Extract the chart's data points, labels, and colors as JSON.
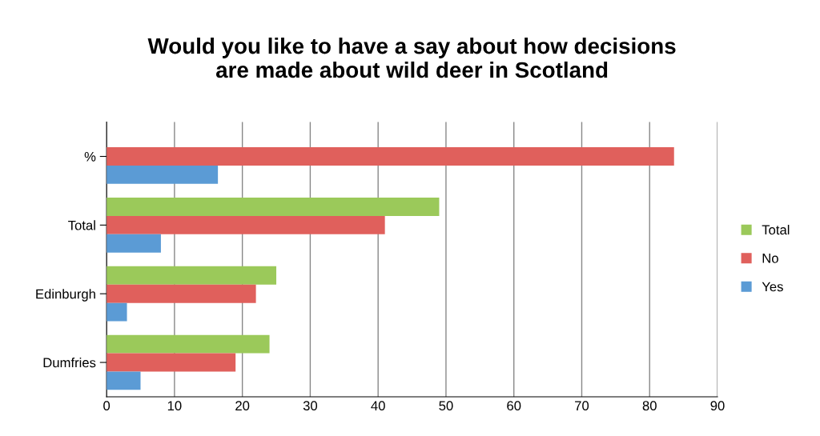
{
  "chart_data": {
    "type": "bar",
    "orientation": "horizontal",
    "title": "Would you like to have a say about how decisions\nare made about wild deer in Scotland",
    "categories": [
      "%",
      "Total",
      "Edinburgh",
      "Dumfries"
    ],
    "series": [
      {
        "name": "Total",
        "color": "#9bc95a",
        "values": [
          null,
          49,
          25,
          24
        ]
      },
      {
        "name": "No",
        "color": "#e0605c",
        "values": [
          83.6,
          41,
          22,
          19
        ]
      },
      {
        "name": "Yes",
        "color": "#5b9bd5",
        "values": [
          16.4,
          8,
          3,
          5
        ]
      }
    ],
    "xlim": [
      0,
      90
    ],
    "xticks": [
      0,
      10,
      20,
      30,
      40,
      50,
      60,
      70,
      80,
      90
    ],
    "grid": "x",
    "legend": "right"
  }
}
